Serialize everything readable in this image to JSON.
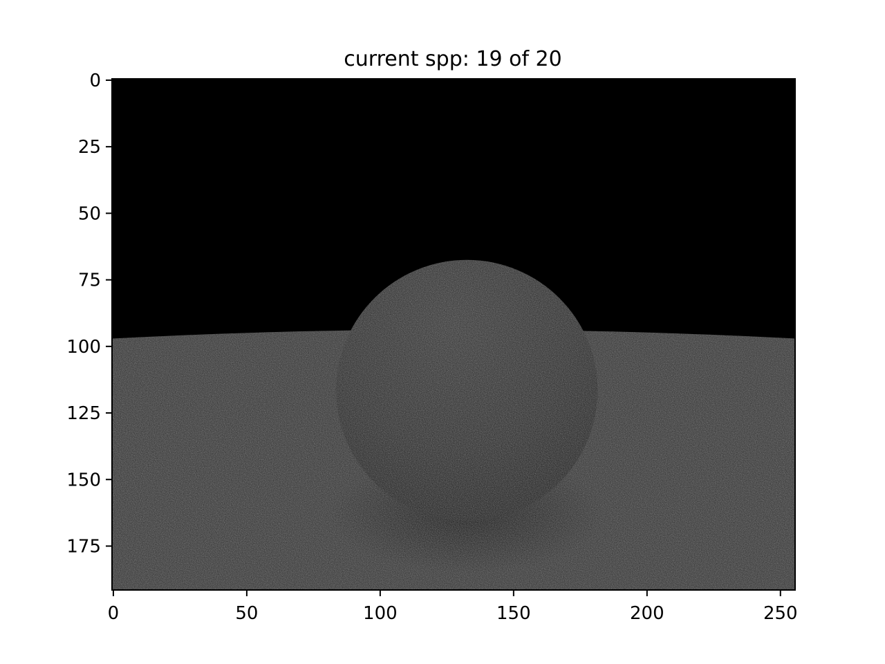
{
  "figure": {
    "title": "current spp: 19 of 20"
  },
  "chart_data": {
    "type": "heatmap",
    "title": "current spp: 19 of 20",
    "xlabel": "",
    "ylabel": "",
    "image_width": 256,
    "image_height": 192,
    "xlim": [
      0,
      256
    ],
    "ylim": [
      192,
      0
    ],
    "x_ticks": [
      0,
      50,
      100,
      150,
      200,
      250
    ],
    "y_ticks": [
      0,
      25,
      50,
      75,
      100,
      125,
      150,
      175
    ],
    "colormap": "gray",
    "grid": false,
    "scene": {
      "background_color": "#000000",
      "floor_color": "#2c2c2c",
      "sphere_color": "#252525",
      "sphere_shadow_color": "#111111",
      "horizon_row": 96,
      "sphere_center": [
        133,
        117
      ],
      "sphere_radius": 49
    }
  }
}
